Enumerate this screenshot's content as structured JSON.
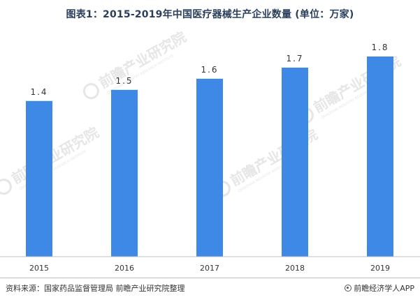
{
  "chart_data": {
    "type": "bar",
    "title": "图表1：2015-2019年中国医疗器械生产企业数量 (单位：万家)",
    "categories": [
      "2015",
      "2016",
      "2017",
      "2018",
      "2019"
    ],
    "values": [
      1.4,
      1.5,
      1.6,
      1.7,
      1.8
    ],
    "value_labels": [
      "1.4",
      "1.5",
      "1.6",
      "1.7",
      "1.8"
    ],
    "bar_color": "#3f89e6",
    "ylim": [
      0,
      1.8
    ],
    "y_axis_visible": false,
    "grid": false,
    "legend": "none"
  },
  "watermark": {
    "text": "前瞻产业研究院",
    "subtext": "QIANZHAN INDUSTRY RESEARCH INSTITUTE",
    "color": "#e6e6e6"
  },
  "footer": {
    "source": "资料来源：国家药品监督管理局 前瞻产业研究院整理",
    "brand": "前瞻经济学人APP"
  }
}
